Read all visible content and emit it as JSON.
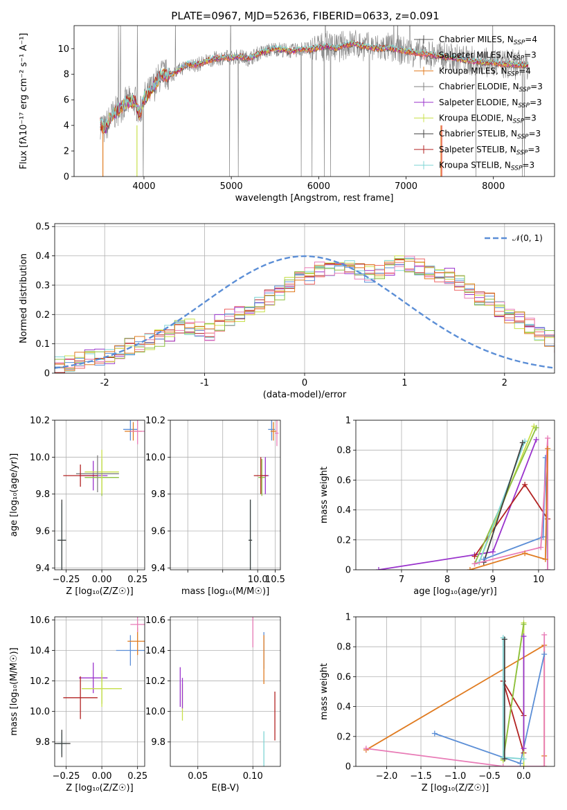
{
  "figure": {
    "title": "PLATE=0967, MJD=52636, FIBERID=0633, z=0.091"
  },
  "colors": {
    "c1": "#5a5a5a",
    "c2": "#ee6666",
    "c3": "#e07b20",
    "c4": "#808080",
    "c5": "#9932cc",
    "c6": "#c8e04a",
    "c7": "#404040",
    "c8": "#b22222",
    "c9": "#7fd4d4",
    "gauss": "#5b8ed6",
    "pink": "#e87bb6",
    "green": "#8cbf3f",
    "blue": "#5b8ed6"
  },
  "chart_data": [
    {
      "id": "spectrum",
      "type": "line",
      "title": "PLATE=0967, MJD=52636, FIBERID=0633, z=0.091",
      "xlabel": "wavelength [Angstrom, rest frame]",
      "ylabel": "Flux [fλ10⁻¹⁷ erg cm⁻² s⁻¹ A⁻¹]",
      "xlim": [
        3200,
        8700
      ],
      "ylim": [
        0,
        11.8
      ],
      "xticks": [
        4000,
        5000,
        6000,
        7000,
        8000
      ],
      "yticks": [
        0,
        2,
        4,
        6,
        8,
        10
      ],
      "legend_position": "top-right",
      "legend": [
        "Chabrier MILES, N_SSP=4",
        "Salpeter MILES, N_SSP=3",
        "Kroupa MILES, N_SSP=4",
        "Chabrier ELODIE, N_SSP=3",
        "Salpeter ELODIE, N_SSP=3",
        "Kroupa ELODIE, N_SSP=3",
        "Chabrier STELIB, N_SSP=3",
        "Salpeter STELIB, N_SSP=3",
        "Kroupa STELIB, N_SSP=3"
      ],
      "legend_display": [
        {
          "pre": "Chabrier MILES, N",
          "sub": "SSP",
          "post": "=4"
        },
        {
          "pre": "Salpeter MILES, N",
          "sub": "SSP",
          "post": "=3"
        },
        {
          "pre": "Kroupa MILES, N",
          "sub": "SSP",
          "post": "=4"
        },
        {
          "pre": "Chabrier ELODIE, N",
          "sub": "SSP",
          "post": "=3"
        },
        {
          "pre": "Salpeter ELODIE, N",
          "sub": "SSP",
          "post": "=3"
        },
        {
          "pre": "Kroupa ELODIE, N",
          "sub": "SSP",
          "post": "=3"
        },
        {
          "pre": "Chabrier STELIB, N",
          "sub": "SSP",
          "post": "=3"
        },
        {
          "pre": "Salpeter STELIB, N",
          "sub": "SSP",
          "post": "=3"
        },
        {
          "pre": "Kroupa STELIB, N",
          "sub": "SSP",
          "post": "=3"
        }
      ],
      "continuum_x": [
        3500,
        3550,
        3600,
        3700,
        3800,
        3900,
        3950,
        4000,
        4100,
        4200,
        4300,
        4400,
        4500,
        4600,
        4700,
        4800,
        4900,
        5000,
        5100,
        5200,
        5300,
        5400,
        5500,
        5600,
        5700,
        5800,
        5900,
        6000,
        6100,
        6200,
        6300,
        6400,
        6500,
        6600,
        6700,
        6800,
        6900,
        7000,
        7100,
        7200,
        7300,
        7400,
        7500,
        7600,
        7700,
        7800,
        7900,
        8000,
        8100,
        8200,
        8300,
        8400
      ],
      "continuum_y": [
        4.2,
        3.6,
        4.4,
        5.2,
        5.8,
        5.9,
        4.8,
        6.1,
        6.9,
        8.0,
        7.9,
        8.3,
        8.8,
        8.7,
        9.0,
        9.2,
        9.3,
        9.3,
        9.4,
        9.2,
        9.6,
        9.8,
        10.0,
        9.9,
        9.8,
        10.0,
        9.9,
        10.1,
        10.2,
        10.0,
        10.3,
        10.4,
        10.2,
        10.1,
        10.0,
        10.1,
        9.9,
        9.8,
        9.7,
        9.6,
        9.5,
        9.4,
        9.3,
        9.2,
        9.1,
        9.0,
        8.9,
        8.9,
        8.8,
        8.8,
        8.7,
        8.7
      ]
    },
    {
      "id": "residuals",
      "type": "line",
      "xlabel": "(data-model)/error",
      "ylabel": "Normed distribution",
      "xlim": [
        -2.5,
        2.5
      ],
      "ylim": [
        0,
        0.51
      ],
      "xticks": [
        -2,
        -1,
        0,
        1,
        2
      ],
      "yticks": [
        0.0,
        0.1,
        0.2,
        0.3,
        0.4,
        0.5
      ],
      "legend": [
        "𝒩(0, 1)"
      ],
      "legend_position": "top-right",
      "bin_edges_start": -2.5,
      "bin_width": 0.1,
      "histogram_mean": [
        0.03,
        0.035,
        0.045,
        0.05,
        0.055,
        0.06,
        0.075,
        0.09,
        0.1,
        0.11,
        0.12,
        0.135,
        0.15,
        0.16,
        0.15,
        0.14,
        0.17,
        0.19,
        0.2,
        0.22,
        0.23,
        0.26,
        0.28,
        0.3,
        0.32,
        0.33,
        0.35,
        0.36,
        0.37,
        0.36,
        0.35,
        0.34,
        0.35,
        0.36,
        0.38,
        0.37,
        0.36,
        0.34,
        0.33,
        0.33,
        0.31,
        0.28,
        0.26,
        0.25,
        0.22,
        0.2,
        0.18,
        0.16,
        0.14,
        0.12,
        0.1,
        0.09,
        0.08,
        0.07,
        0.06,
        0.06,
        0.055,
        0.05,
        0.045,
        0.04
      ],
      "gauss_mean": 0,
      "gauss_sigma": 1
    },
    {
      "id": "age_vs_Z",
      "type": "scatter",
      "xlabel": "Z [log₁₀(Z/Z☉)]",
      "ylabel": "age  [log₁₀(age/yr)]",
      "xlim": [
        -0.33,
        0.3
      ],
      "ylim": [
        9.39,
        10.2
      ],
      "xticks": [
        -0.25,
        0.0,
        0.25
      ],
      "xticklabels": [
        "−0.25",
        "0.00",
        "0.25"
      ],
      "yticks": [
        9.4,
        9.6,
        9.8,
        10.0,
        10.2
      ],
      "yticklabels": [
        "9.4",
        "9.6",
        "9.8",
        "10.0",
        "10.2"
      ],
      "points": [
        {
          "x": 0.2,
          "y": 10.15,
          "xe": 0.05,
          "ye": 0.06,
          "c": "blue"
        },
        {
          "x": 0.22,
          "y": 10.14,
          "xe": 0.06,
          "ye": 0.05,
          "c": "c3"
        },
        {
          "x": 0.25,
          "y": 10.14,
          "xe": 0.05,
          "ye": 0.07,
          "c": "pink"
        },
        {
          "x": -0.06,
          "y": 9.9,
          "xe": 0.1,
          "ye": 0.08,
          "c": "c5"
        },
        {
          "x": 0.0,
          "y": 9.89,
          "xe": 0.12,
          "ye": 0.1,
          "c": "green"
        },
        {
          "x": 0.0,
          "y": 9.92,
          "xe": 0.12,
          "ye": 0.12,
          "c": "c6"
        },
        {
          "x": -0.03,
          "y": 9.91,
          "xe": 0.15,
          "ye": 0.1,
          "c": "c4"
        },
        {
          "x": -0.15,
          "y": 9.9,
          "xe": 0.12,
          "ye": 0.06,
          "c": "c8"
        },
        {
          "x": -0.28,
          "y": 9.55,
          "xe": 0.03,
          "ye": 0.2,
          "c": "c9"
        },
        {
          "x": -0.28,
          "y": 9.55,
          "xe": 0.03,
          "ye": 0.22,
          "c": "c7"
        }
      ]
    },
    {
      "id": "age_vs_mass",
      "type": "scatter",
      "xlabel": "mass [log₁₀(M/M☉)]",
      "xlim": [
        7.5,
        10.65
      ],
      "ylim": [
        9.39,
        10.2
      ],
      "xticks": [
        8.0,
        9.0,
        10.0,
        10.5
      ],
      "xticklabels": [
        "",
        "",
        "10.0",
        "10.5"
      ],
      "yticks": [
        9.4,
        9.6,
        9.8,
        10.0,
        10.2
      ],
      "yticklabels": [
        "9.4",
        "9.6",
        "9.8",
        "10.0",
        "10.2"
      ],
      "points": [
        {
          "x": 10.4,
          "y": 10.15,
          "xe": 0.1,
          "ye": 0.06,
          "c": "blue"
        },
        {
          "x": 10.45,
          "y": 10.14,
          "xe": 0.08,
          "ye": 0.05,
          "c": "c3"
        },
        {
          "x": 10.55,
          "y": 10.13,
          "xe": 0.05,
          "ye": 0.07,
          "c": "pink"
        },
        {
          "x": 10.22,
          "y": 9.9,
          "xe": 0.1,
          "ye": 0.1,
          "c": "c5"
        },
        {
          "x": 10.12,
          "y": 9.89,
          "xe": 0.1,
          "ye": 0.1,
          "c": "green"
        },
        {
          "x": 10.09,
          "y": 9.9,
          "xe": 0.2,
          "ye": 0.1,
          "c": "c8"
        },
        {
          "x": 9.79,
          "y": 9.55,
          "xe": 0.05,
          "ye": 0.22,
          "c": "c9"
        },
        {
          "x": 9.79,
          "y": 9.55,
          "xe": 0.05,
          "ye": 0.22,
          "c": "c7"
        }
      ]
    },
    {
      "id": "mass_weight_vs_age",
      "type": "line",
      "xlabel": "age  [log₁₀(age/yr)]",
      "ylabel": "mass weight",
      "xlim": [
        6.0,
        10.35
      ],
      "ylim": [
        0,
        1.0
      ],
      "xticks": [
        7,
        8,
        9,
        10
      ],
      "yticks": [
        0.0,
        0.2,
        0.4,
        0.6,
        0.8,
        1.0
      ],
      "series": [
        {
          "c": "c5",
          "x": [
            6.5,
            8.6,
            9.0,
            9.95
          ],
          "y": [
            0.0,
            0.1,
            0.12,
            0.87
          ]
        },
        {
          "c": "c8",
          "x": [
            8.6,
            9.7,
            10.2
          ],
          "y": [
            0.09,
            0.57,
            0.34
          ]
        },
        {
          "c": "c6",
          "x": [
            8.7,
            9.9
          ],
          "y": [
            0.05,
            0.96
          ]
        },
        {
          "c": "green",
          "x": [
            8.6,
            9.95
          ],
          "y": [
            0.04,
            0.95
          ]
        },
        {
          "c": "c9",
          "x": [
            8.7,
            9.7
          ],
          "y": [
            0.05,
            0.86
          ]
        },
        {
          "c": "c7",
          "x": [
            8.8,
            9.65
          ],
          "y": [
            0.05,
            0.85
          ]
        },
        {
          "c": "blue",
          "x": [
            8.8,
            10.1,
            10.15,
            10.2
          ],
          "y": [
            0.07,
            0.22,
            0.75,
            0.0
          ]
        },
        {
          "c": "pink",
          "x": [
            8.6,
            10.05,
            10.2,
            10.2
          ],
          "y": [
            0.04,
            0.15,
            0.88,
            0.0
          ]
        },
        {
          "c": "c3",
          "x": [
            8.5,
            9.7,
            10.15,
            10.2
          ],
          "y": [
            0.0,
            0.11,
            0.07,
            0.81
          ]
        }
      ]
    },
    {
      "id": "mass_vs_Z",
      "type": "scatter",
      "xlabel": "Z [log₁₀(Z/Z☉)]",
      "ylabel": "mass [log₁₀(M/M☉)]",
      "xlim": [
        -0.33,
        0.3
      ],
      "ylim": [
        9.64,
        10.62
      ],
      "xticks": [
        -0.25,
        0.0,
        0.25
      ],
      "xticklabels": [
        "−0.25",
        "0.00",
        "0.25"
      ],
      "yticks": [
        9.8,
        10.0,
        10.2,
        10.4,
        10.6
      ],
      "yticklabels": [
        "9.8",
        "10.0",
        "10.2",
        "10.4",
        "10.6"
      ],
      "points": [
        {
          "x": 0.2,
          "y": 10.4,
          "xe": 0.1,
          "ye": 0.1,
          "c": "blue"
        },
        {
          "x": 0.25,
          "y": 10.46,
          "xe": 0.07,
          "ye": 0.09,
          "c": "c3"
        },
        {
          "x": 0.25,
          "y": 10.57,
          "xe": 0.05,
          "ye": 0.05,
          "c": "pink"
        },
        {
          "x": -0.06,
          "y": 10.22,
          "xe": 0.1,
          "ye": 0.1,
          "c": "c5"
        },
        {
          "x": 0.0,
          "y": 10.15,
          "xe": 0.14,
          "ye": 0.1,
          "c": "green"
        },
        {
          "x": 0.0,
          "y": 10.15,
          "xe": 0.14,
          "ye": 0.12,
          "c": "c6"
        },
        {
          "x": -0.15,
          "y": 10.09,
          "xe": 0.12,
          "ye": 0.14,
          "c": "c8"
        },
        {
          "x": -0.28,
          "y": 9.79,
          "xe": 0.03,
          "ye": 0.07,
          "c": "c9"
        },
        {
          "x": -0.28,
          "y": 9.79,
          "xe": 0.06,
          "ye": 0.09,
          "c": "c7"
        }
      ]
    },
    {
      "id": "mass_vs_EBV",
      "type": "scatter",
      "xlabel": "E(B-V)",
      "xlim": [
        0.025,
        0.125
      ],
      "ylim": [
        9.64,
        10.62
      ],
      "xticks": [
        0.05,
        0.1
      ],
      "xticklabels": [
        "0.05",
        "0.10"
      ],
      "yticks": [
        9.8,
        10.0,
        10.2,
        10.4,
        10.6
      ],
      "yticklabels": [
        "9.8",
        "10.0",
        "10.2",
        "10.4",
        "10.6"
      ],
      "points": [
        {
          "x": 0.1,
          "y": 10.52,
          "xe": 0,
          "ye": 0.1,
          "c": "pink"
        },
        {
          "x": 0.11,
          "y": 10.4,
          "xe": 0,
          "ye": 0.12,
          "c": "blue"
        },
        {
          "x": 0.11,
          "y": 10.34,
          "xe": 0,
          "ye": 0.16,
          "c": "c3"
        },
        {
          "x": 0.12,
          "y": 9.97,
          "xe": 0,
          "ye": 0.16,
          "c": "c8"
        },
        {
          "x": 0.11,
          "y": 9.75,
          "xe": 0,
          "ye": 0.12,
          "c": "c9"
        },
        {
          "x": 0.034,
          "y": 10.16,
          "xe": 0,
          "ye": 0.13,
          "c": "c5"
        },
        {
          "x": 0.036,
          "y": 10.06,
          "xe": 0,
          "ye": 0.12,
          "c": "c6"
        },
        {
          "x": 0.036,
          "y": 10.12,
          "xe": 0,
          "ye": 0.1,
          "c": "c5"
        }
      ]
    },
    {
      "id": "mass_weight_vs_Z",
      "type": "line",
      "xlabel": "Z [log₁₀(Z/Z☉)]",
      "ylabel": "mass weight",
      "xlim": [
        -2.45,
        0.45
      ],
      "ylim": [
        0,
        1.0
      ],
      "xticks": [
        -2.0,
        -1.5,
        -1.0,
        -0.5,
        0.0
      ],
      "xticklabels": [
        "−2.0",
        "−1.5",
        "−1.0",
        "−0.5",
        "0.0"
      ],
      "yticks": [
        0.0,
        0.2,
        0.4,
        0.6,
        0.8,
        1.0
      ],
      "series": [
        {
          "c": "c3",
          "x": [
            -2.3,
            0.3,
            0.3,
            0.3
          ],
          "y": [
            0.11,
            0.81,
            0.07,
            0.0
          ]
        },
        {
          "c": "pink",
          "x": [
            -2.3,
            -0.3,
            0.3,
            0.3
          ],
          "y": [
            0.12,
            0.0,
            0.0,
            0.88
          ]
        },
        {
          "c": "blue",
          "x": [
            -1.3,
            -0.05,
            0.3
          ],
          "y": [
            0.22,
            0.02,
            0.75
          ]
        },
        {
          "c": "c8",
          "x": [
            -0.3,
            0.0,
            0.0,
            -0.3
          ],
          "y": [
            0.57,
            0.09,
            0.34,
            0.57
          ]
        },
        {
          "c": "c6",
          "x": [
            -0.3,
            0.0,
            0.0
          ],
          "y": [
            0.04,
            0.96,
            0.0
          ]
        },
        {
          "c": "green",
          "x": [
            -0.3,
            0.0
          ],
          "y": [
            0.05,
            0.95
          ]
        },
        {
          "c": "c9",
          "x": [
            -0.3,
            -0.3,
            0.0
          ],
          "y": [
            0.86,
            0.06,
            0.05
          ]
        },
        {
          "c": "c7",
          "x": [
            -0.28,
            -0.28
          ],
          "y": [
            0.85,
            0.05
          ]
        },
        {
          "c": "c5",
          "x": [
            0.0,
            0.0
          ],
          "y": [
            0.87,
            0.12
          ]
        }
      ]
    }
  ]
}
